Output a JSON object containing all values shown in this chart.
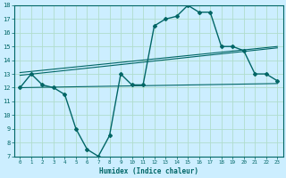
{
  "xlabel": "Humidex (Indice chaleur)",
  "bg_color": "#cceeff",
  "grid_color": "#b0ddcc",
  "line_color": "#006666",
  "xlim": [
    -0.5,
    23.5
  ],
  "ylim": [
    7,
    18
  ],
  "xticks": [
    0,
    1,
    2,
    3,
    4,
    5,
    6,
    7,
    8,
    9,
    10,
    11,
    12,
    13,
    14,
    15,
    16,
    17,
    18,
    19,
    20,
    21,
    22,
    23
  ],
  "yticks": [
    7,
    8,
    9,
    10,
    11,
    12,
    13,
    14,
    15,
    16,
    17,
    18
  ],
  "main_x": [
    0,
    1,
    2,
    3,
    4,
    5,
    6,
    7,
    8,
    9,
    10,
    11,
    12,
    13,
    14,
    15,
    16,
    17,
    18,
    19,
    20,
    21,
    22,
    23
  ],
  "main_y": [
    12.0,
    13.0,
    12.2,
    12.0,
    11.5,
    9.0,
    7.5,
    7.0,
    8.5,
    13.0,
    12.2,
    12.2,
    16.5,
    17.0,
    17.2,
    18.0,
    17.5,
    17.5,
    15.0,
    15.0,
    14.7,
    13.0,
    13.0,
    12.5
  ],
  "line1_x": [
    0,
    23
  ],
  "line1_y": [
    12.0,
    12.3
  ],
  "line2_x": [
    0,
    23
  ],
  "line2_y": [
    12.9,
    14.9
  ],
  "line3_x": [
    0,
    23
  ],
  "line3_y": [
    13.1,
    15.0
  ]
}
